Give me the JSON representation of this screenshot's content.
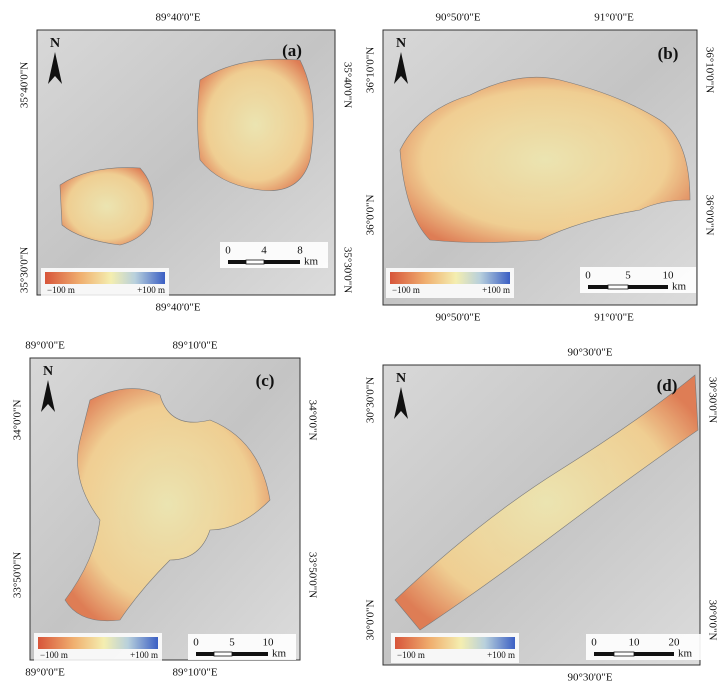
{
  "panels": [
    {
      "label": "(a)",
      "north": "N",
      "top_labels": [
        "89°40'0\"E"
      ],
      "bottom_labels": [
        "89°40'0\"E"
      ],
      "left_labels": [
        "35°40'0\"N",
        "35°30'0\"N"
      ],
      "right_labels": [
        "35°40'0\"N",
        "35°30'0\"N"
      ],
      "legend": [
        "−100 m",
        "+100 m"
      ],
      "scale": [
        "0",
        "4",
        "8"
      ],
      "scale_unit": "km"
    },
    {
      "label": "(b)",
      "north": "N",
      "top_labels": [
        "90°50'0\"E",
        "91°0'0\"E"
      ],
      "bottom_labels": [
        "90°50'0\"E",
        "91°0'0\"E"
      ],
      "left_labels": [
        "36°10'0\"N",
        "36°0'0\"N"
      ],
      "right_labels": [
        "36°10'0\"N",
        "36°0'0\"N"
      ],
      "legend": [
        "−100 m",
        "+100 m"
      ],
      "scale": [
        "0",
        "5",
        "10"
      ],
      "scale_unit": "km"
    },
    {
      "label": "(c)",
      "north": "N",
      "top_labels": [
        "89°0'0\"E",
        "89°10'0\"E"
      ],
      "bottom_labels": [
        "89°0'0\"E",
        "89°10'0\"E"
      ],
      "left_labels": [
        "34°0'0\"N",
        "33°50'0\"N"
      ],
      "right_labels": [
        "34°0'0\"N",
        "33°50'0\"N"
      ],
      "legend": [
        "−100 m",
        "+100 m"
      ],
      "scale": [
        "0",
        "5",
        "10"
      ],
      "scale_unit": "km"
    },
    {
      "label": "(d)",
      "north": "N",
      "top_labels": [
        "90°30'0\"E"
      ],
      "bottom_labels": [
        "90°30'0\"E"
      ],
      "left_labels": [
        "30°30'0\"N",
        "30°0'0\"N"
      ],
      "right_labels": [
        "30°30'0\"N",
        "30°0'0\"N"
      ],
      "legend": [
        "−100 m",
        "+100 m"
      ],
      "scale": [
        "0",
        "10",
        "20"
      ],
      "scale_unit": "km"
    }
  ]
}
